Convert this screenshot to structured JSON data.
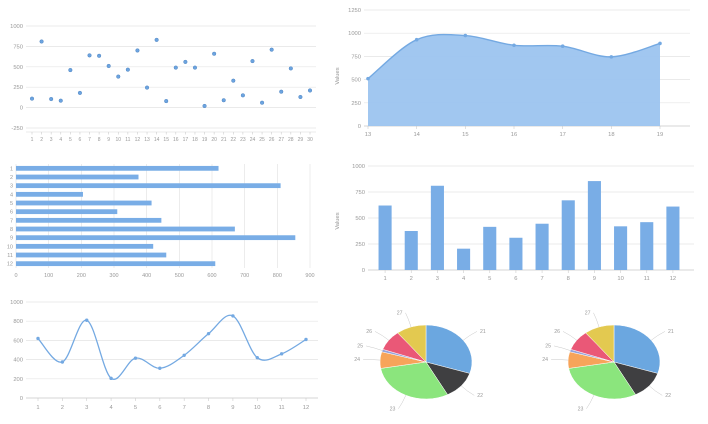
{
  "page": {
    "title": "charts-dashboard",
    "background": "#ffffff"
  },
  "palette": {
    "series_blue": "#79ade6",
    "area_fill": "#9cc4ef",
    "area_stroke": "#74a9e2",
    "point_fill": "#6ca4e0",
    "point_stroke": "#5186c2",
    "grid": "#e4e4e4",
    "tick_text": "#999999",
    "leader_line": "#c8c8c8"
  },
  "chart_data": [
    {
      "id": "scatter",
      "type": "scatter",
      "x": [
        1,
        2,
        3,
        4,
        5,
        6,
        7,
        8,
        9,
        10,
        11,
        12,
        13,
        14,
        15,
        16,
        17,
        18,
        19,
        20,
        21,
        22,
        23,
        24,
        25,
        26,
        27,
        28,
        29,
        30
      ],
      "values": [
        110,
        810,
        105,
        85,
        460,
        180,
        640,
        635,
        510,
        380,
        465,
        700,
        245,
        830,
        80,
        490,
        560,
        490,
        20,
        660,
        90,
        330,
        150,
        570,
        60,
        710,
        195,
        480,
        130,
        210
      ],
      "ylim": [
        -250,
        1000
      ],
      "yticks": [
        -250,
        0,
        250,
        500,
        750,
        1000
      ],
      "xlabel": "",
      "ylabel": "",
      "grid": true
    },
    {
      "id": "area",
      "type": "area",
      "categories": [
        "13",
        "14",
        "15",
        "16",
        "17",
        "18",
        "19"
      ],
      "values": [
        510,
        930,
        975,
        870,
        860,
        745,
        890
      ],
      "ylim": [
        0,
        1250
      ],
      "yticks": [
        0,
        250,
        500,
        750,
        1000,
        1250
      ],
      "xlabel": "",
      "ylabel": "Values",
      "grid": true
    },
    {
      "id": "barh",
      "type": "barh",
      "categories": [
        "1",
        "2",
        "3",
        "4",
        "5",
        "6",
        "7",
        "8",
        "9",
        "10",
        "11",
        "12"
      ],
      "values": [
        620,
        375,
        810,
        205,
        415,
        310,
        445,
        670,
        855,
        420,
        460,
        610
      ],
      "xlim": [
        0,
        900
      ],
      "xticks": [
        0,
        100,
        200,
        300,
        400,
        500,
        600,
        700,
        800,
        900
      ],
      "xlabel": "",
      "ylabel": "",
      "grid": true
    },
    {
      "id": "bar",
      "type": "bar",
      "categories": [
        "1",
        "2",
        "3",
        "4",
        "5",
        "6",
        "7",
        "8",
        "9",
        "10",
        "11",
        "12"
      ],
      "values": [
        620,
        375,
        810,
        205,
        415,
        310,
        445,
        670,
        855,
        420,
        460,
        610
      ],
      "ylim": [
        0,
        1000
      ],
      "yticks": [
        0,
        250,
        500,
        750,
        1000
      ],
      "xlabel": "",
      "ylabel": "Values",
      "grid": true
    },
    {
      "id": "line",
      "type": "line",
      "categories": [
        "1",
        "2",
        "3",
        "4",
        "5",
        "6",
        "7",
        "8",
        "9",
        "10",
        "11",
        "12"
      ],
      "values": [
        620,
        375,
        810,
        205,
        415,
        310,
        445,
        670,
        855,
        420,
        460,
        610
      ],
      "ylim": [
        0,
        1000
      ],
      "yticks": [
        0,
        200,
        400,
        600,
        800,
        1000
      ],
      "xlabel": "",
      "ylabel": "",
      "grid": true
    },
    {
      "id": "pie1",
      "type": "pie",
      "labels": [
        "21",
        "22",
        "23",
        "24",
        "25",
        "26",
        "27"
      ],
      "values": [
        108,
        44,
        108,
        26,
        4,
        32,
        38
      ],
      "colors": [
        "#6ba7e0",
        "#3f3f41",
        "#8be57d",
        "#f7a45a",
        "#96a2dc",
        "#ea5877",
        "#e3c950"
      ],
      "legend": "none"
    },
    {
      "id": "pie2",
      "type": "pie",
      "labels": [
        "21",
        "22",
        "23",
        "24",
        "25",
        "26",
        "27"
      ],
      "values": [
        108,
        44,
        108,
        26,
        4,
        32,
        38
      ],
      "colors": [
        "#6ba7e0",
        "#3f3f41",
        "#8be57d",
        "#f7a45a",
        "#96a2dc",
        "#ea5877",
        "#e3c950"
      ],
      "legend": "none"
    }
  ]
}
